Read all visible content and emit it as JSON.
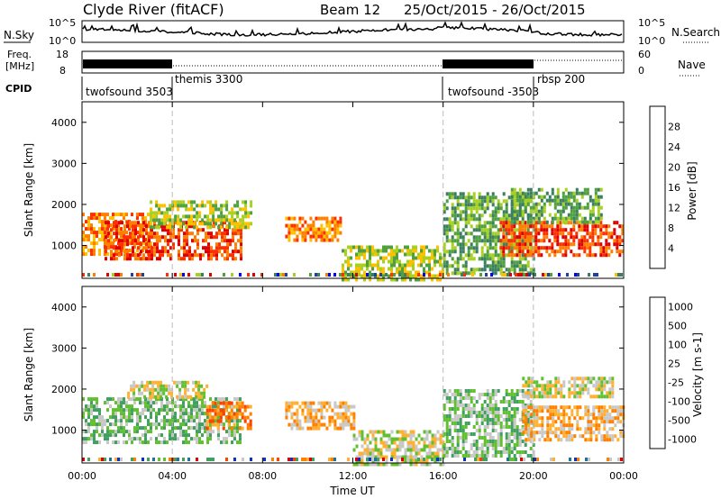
{
  "header": {
    "title": "Clyde River (fitACF)",
    "beam": "Beam 12",
    "date_range": "25/Oct/2015 - 26/Oct/2015"
  },
  "noise_panel": {
    "left_label": "N.Sky",
    "right_label": "N.Search",
    "left_ticks": [
      "10^5",
      "10^0"
    ],
    "right_ticks": [
      "10^5",
      "10^0"
    ]
  },
  "freq_panel": {
    "left_label_1": "Freq.",
    "left_label_2": "[MHz]",
    "left_ticks": [
      "18",
      "8"
    ],
    "right_ticks": [
      "60",
      "0"
    ],
    "right_label": "Nave"
  },
  "cpid": {
    "label": "CPID",
    "segments": [
      {
        "start_h": 0,
        "end_h": 4,
        "name": "twofsound 3503"
      },
      {
        "start_h": 4,
        "end_h": 16,
        "name": "themis 3300"
      },
      {
        "start_h": 16,
        "end_h": 20,
        "name": "twofsound -3503"
      },
      {
        "start_h": 20,
        "end_h": 24,
        "name": "rbsp 200"
      }
    ]
  },
  "colors": {
    "power": [
      "#0000ff",
      "#2040a0",
      "#3a8060",
      "#50a040",
      "#a8d020",
      "#ffc000",
      "#ff8000",
      "#ff3000",
      "#e00000"
    ],
    "velocity": [
      "#e00000",
      "#ff4000",
      "#ff8000",
      "#ffb030",
      "#c8c8c8",
      "#60c030",
      "#40a060",
      "#2070a0",
      "#1030c0"
    ]
  },
  "chart_data": [
    {
      "type": "heatmap",
      "panel": "power",
      "ylabel": "Slant Range [km]",
      "yticks": [
        1000,
        2000,
        3000,
        4000
      ],
      "ylim": [
        200,
        4500
      ],
      "xlim_hours": [
        0,
        24
      ],
      "colorbar": {
        "label": "Power [dB]",
        "ticks": [
          "4",
          "8",
          "12",
          "16",
          "20",
          "24",
          "28"
        ],
        "range": [
          0,
          30
        ]
      },
      "echo_regions": [
        {
          "t0": 0.0,
          "t1": 3.0,
          "r0": 800,
          "r1": 1800,
          "value": 24
        },
        {
          "t0": 1.0,
          "t1": 7.0,
          "r0": 700,
          "r1": 1600,
          "value": 28
        },
        {
          "t0": 3.0,
          "t1": 7.5,
          "r0": 1400,
          "r1": 2100,
          "value": 14
        },
        {
          "t0": 9.0,
          "t1": 11.5,
          "r0": 1100,
          "r1": 1700,
          "value": 22
        },
        {
          "t0": 11.5,
          "t1": 16.0,
          "r0": 200,
          "r1": 1000,
          "value": 16
        },
        {
          "t0": 16.0,
          "t1": 20.0,
          "r0": 300,
          "r1": 2300,
          "value": 12
        },
        {
          "t0": 18.5,
          "t1": 24.0,
          "r0": 800,
          "r1": 1600,
          "value": 26
        },
        {
          "t0": 19.0,
          "t1": 23.0,
          "r0": 1600,
          "r1": 2400,
          "value": 10
        }
      ]
    },
    {
      "type": "heatmap",
      "panel": "velocity",
      "ylabel": "Slant Range [km]",
      "yticks": [
        1000,
        2000,
        3000,
        4000
      ],
      "ylim": [
        200,
        4500
      ],
      "xlim_hours": [
        0,
        24
      ],
      "xlabel": "Time UT",
      "xticks": [
        "00:00",
        "04:00",
        "08:00",
        "12:00",
        "16:00",
        "20:00",
        "00:00"
      ],
      "colorbar": {
        "label": "Velocity [m s-1]",
        "ticks": [
          "1000",
          "500",
          "100",
          "25",
          "-25",
          "-100",
          "-500",
          "-1000"
        ],
        "range": [
          -1000,
          1000
        ]
      },
      "echo_regions": [
        {
          "t0": 0.0,
          "t1": 7.0,
          "r0": 700,
          "r1": 1800,
          "value": 300
        },
        {
          "t0": 2.0,
          "t1": 5.5,
          "r0": 1800,
          "r1": 2200,
          "value": 0
        },
        {
          "t0": 5.5,
          "t1": 7.5,
          "r0": 1000,
          "r1": 1700,
          "value": -400
        },
        {
          "t0": 9.0,
          "t1": 12.0,
          "r0": 1000,
          "r1": 1700,
          "value": -200
        },
        {
          "t0": 12.0,
          "t1": 16.0,
          "r0": 200,
          "r1": 1000,
          "value": 80
        },
        {
          "t0": 16.0,
          "t1": 20.0,
          "r0": 400,
          "r1": 2000,
          "value": 150
        },
        {
          "t0": 19.5,
          "t1": 24.0,
          "r0": 800,
          "r1": 1600,
          "value": -300
        },
        {
          "t0": 19.5,
          "t1": 23.5,
          "r0": 1800,
          "r1": 2300,
          "value": 0
        }
      ]
    }
  ]
}
